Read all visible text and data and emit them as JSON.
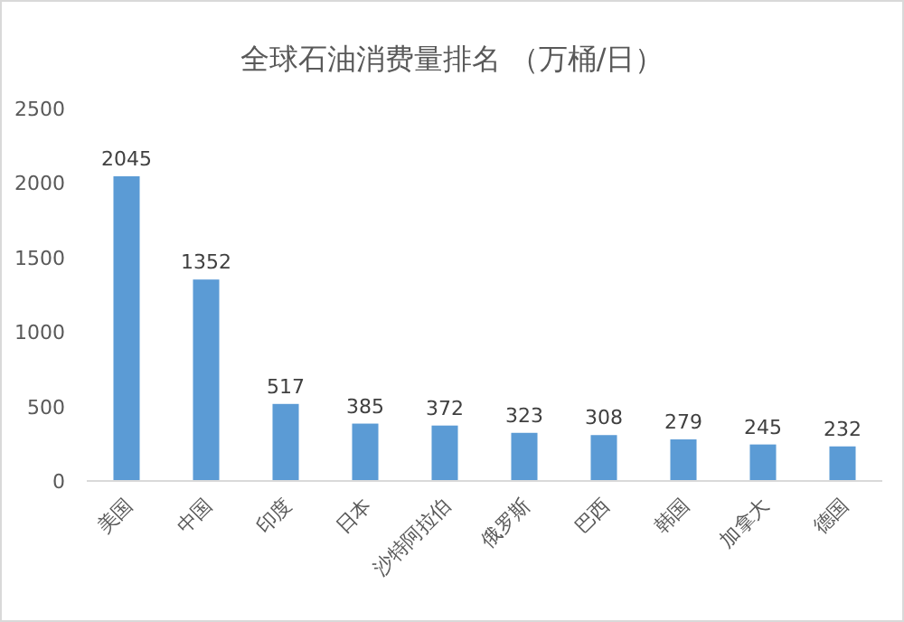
{
  "chart_data": {
    "type": "bar",
    "title": "全球石油消费量排名 （万桶/日）",
    "categories": [
      "美国",
      "中国",
      "印度",
      "日本",
      "沙特阿拉伯",
      "俄罗斯",
      "巴西",
      "韩国",
      "加拿大",
      "德国"
    ],
    "values": [
      2045,
      1352,
      517,
      385,
      372,
      323,
      308,
      279,
      245,
      232
    ],
    "color": "#5b9bd5",
    "ylim": [
      0,
      2500
    ],
    "yticks": [
      0,
      500,
      1000,
      1500,
      2000,
      2500
    ],
    "data_labels": true
  }
}
